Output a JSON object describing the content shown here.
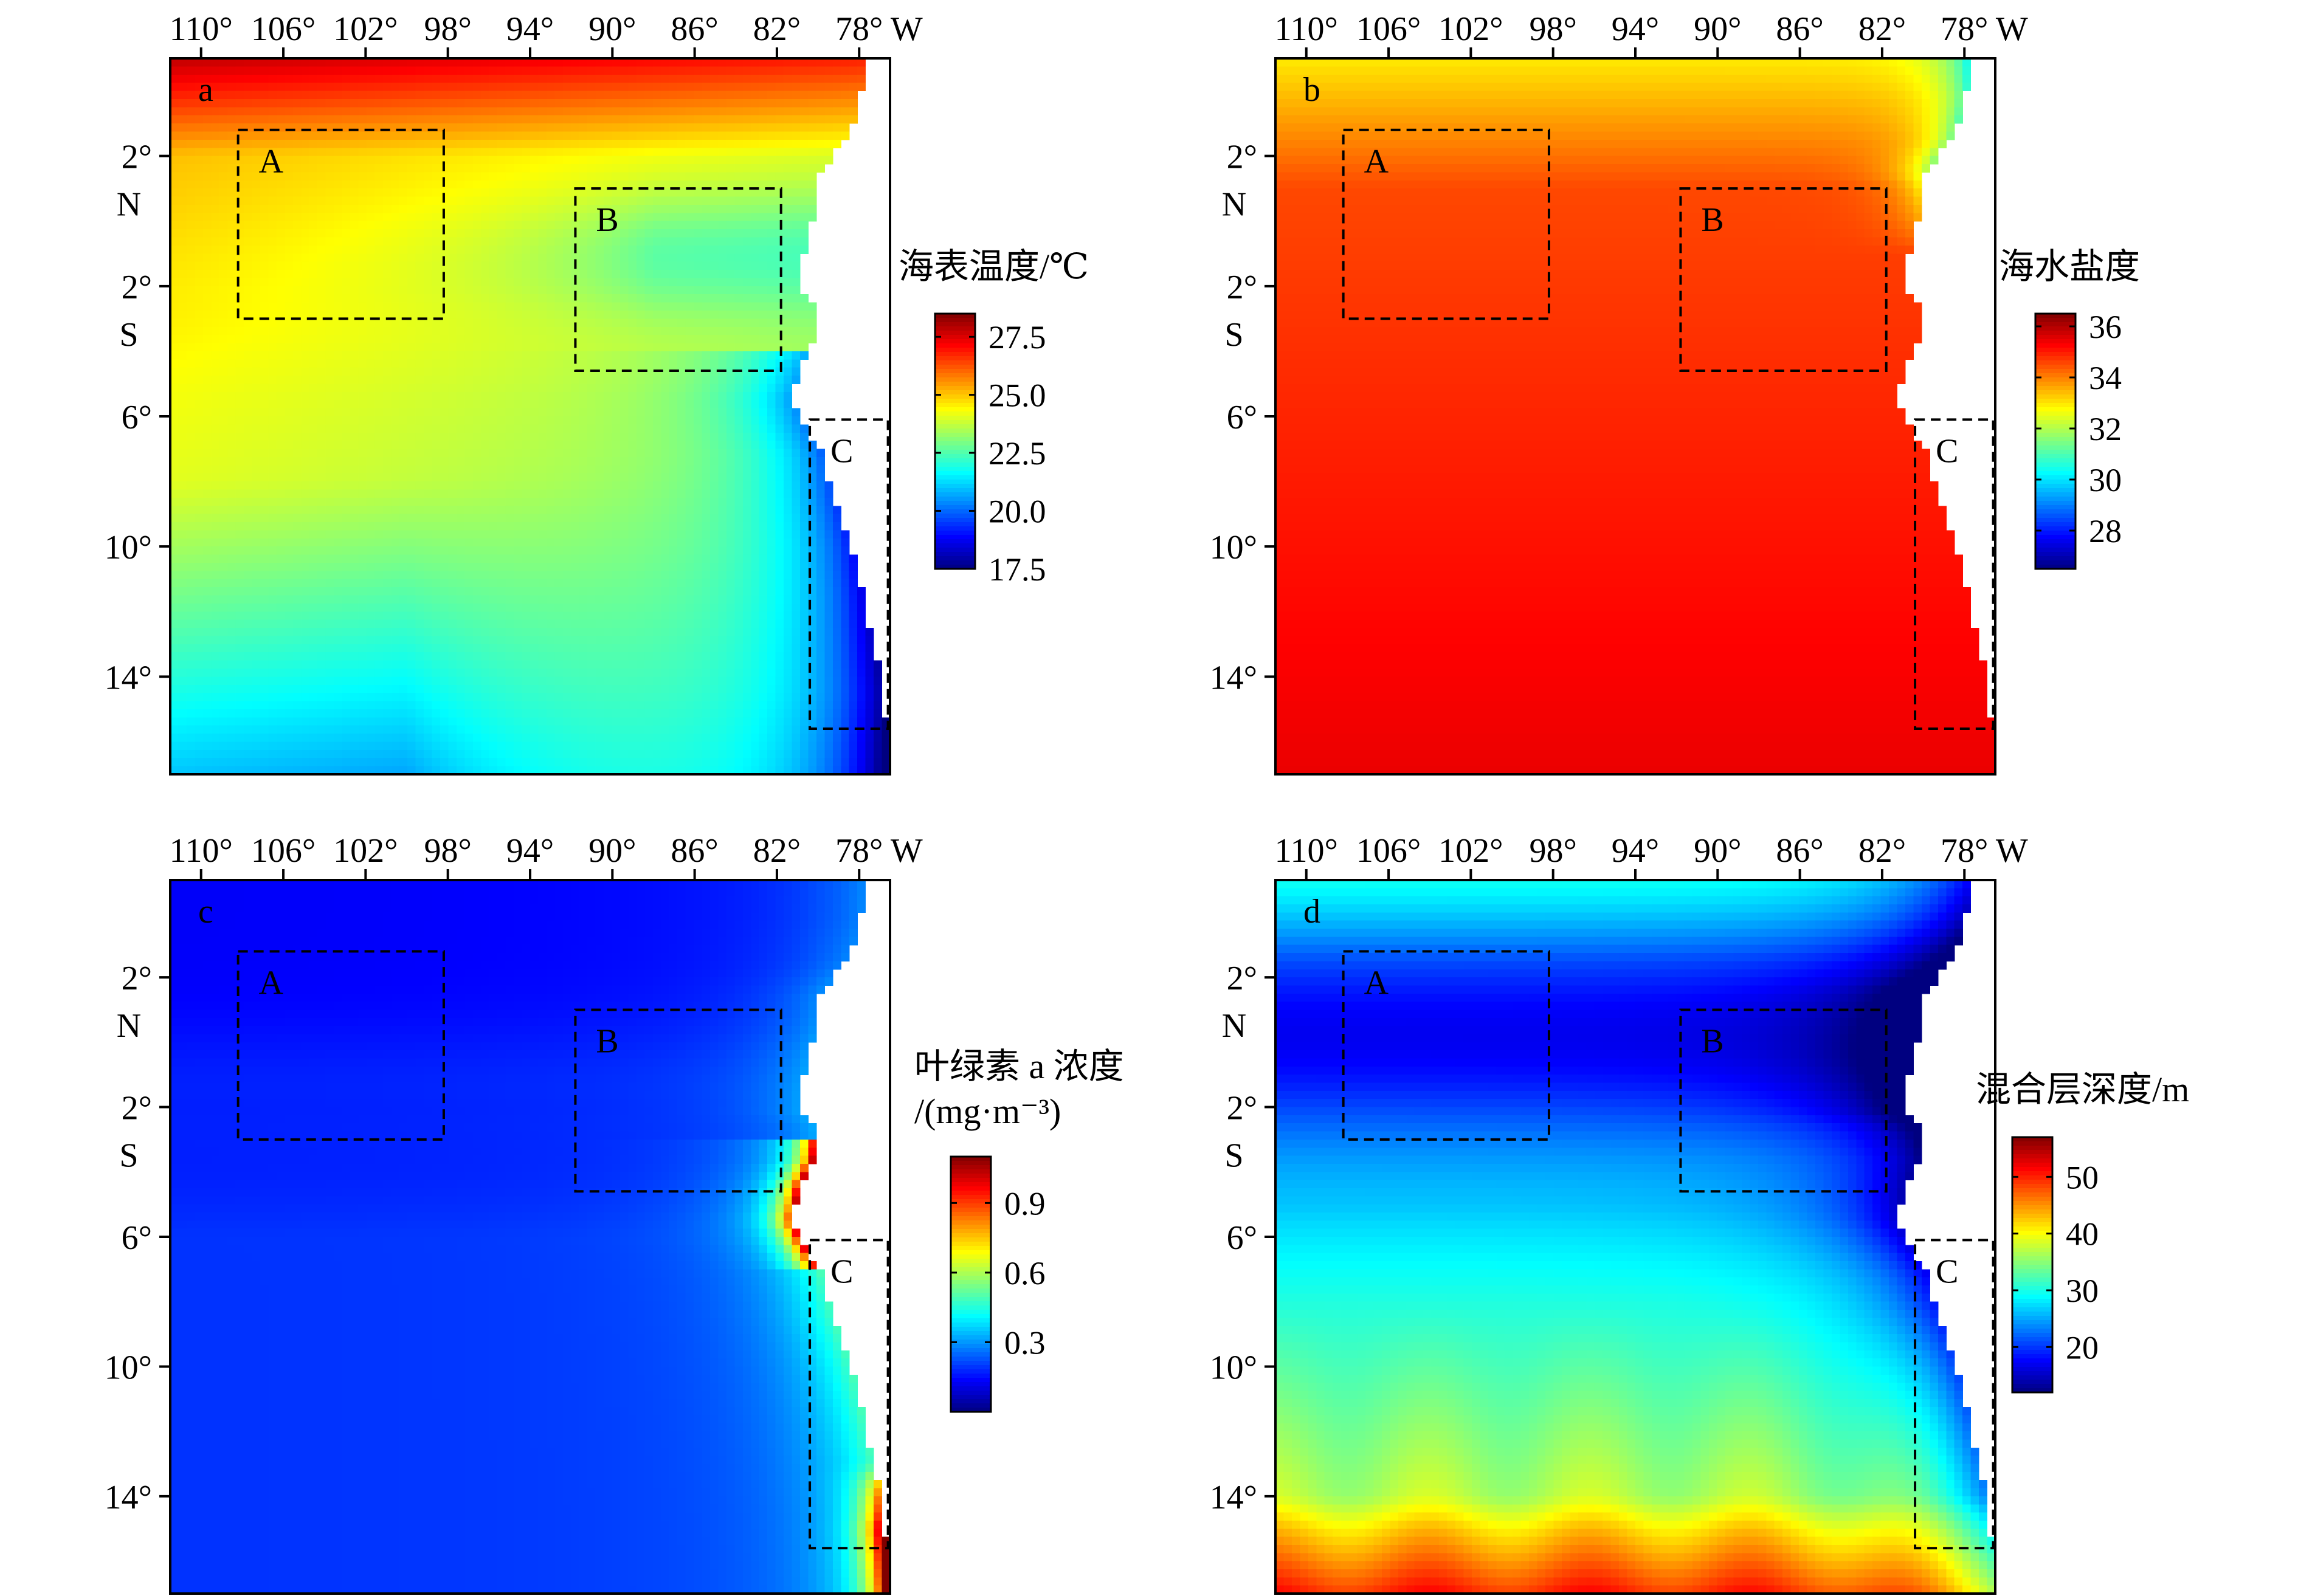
{
  "figure": {
    "x_ticks": [
      {
        "lon": 110,
        "label": "110°"
      },
      {
        "lon": 106,
        "label": "106°"
      },
      {
        "lon": 102,
        "label": "102°"
      },
      {
        "lon": 98,
        "label": "98°"
      },
      {
        "lon": 94,
        "label": "94°"
      },
      {
        "lon": 90,
        "label": "90°"
      },
      {
        "lon": 86,
        "label": "86°"
      },
      {
        "lon": 82,
        "label": "82°"
      },
      {
        "lon": 78,
        "label": "78°"
      }
    ],
    "x_unit": "W",
    "y_ticks": [
      {
        "lat": 2,
        "label": "2°",
        "hemi": "N"
      },
      {
        "lat": -2,
        "label": "2°",
        "hemi": "S"
      },
      {
        "lat": -6,
        "label": "6°",
        "hemi": ""
      },
      {
        "lat": -10,
        "label": "10°",
        "hemi": ""
      },
      {
        "lat": -14,
        "label": "14°",
        "hemi": ""
      }
    ],
    "lon_range": [
      111.5,
      76.5
    ],
    "lat_range": [
      5.0,
      -17.0
    ],
    "boxes": [
      {
        "id": "A",
        "lon": [
          108.2,
          98.2
        ],
        "lat": [
          2.8,
          -3.0
        ]
      },
      {
        "id": "B",
        "lon": [
          91.8,
          81.8
        ],
        "lat": [
          1.0,
          -4.6
        ]
      },
      {
        "id": "C",
        "lon": [
          80.4,
          76.6
        ],
        "lat": [
          -6.1,
          -15.6
        ]
      }
    ],
    "coast": [
      [
        5.0,
        77.8
      ],
      [
        3.8,
        77.9
      ],
      [
        2.5,
        78.6
      ],
      [
        1.5,
        80.0
      ],
      [
        0.5,
        80.1
      ],
      [
        -0.5,
        80.5
      ],
      [
        -1.5,
        80.8
      ],
      [
        -2.2,
        80.9
      ],
      [
        -2.5,
        80.3
      ],
      [
        -3.0,
        80.1
      ],
      [
        -3.6,
        80.2
      ],
      [
        -4.5,
        80.9
      ],
      [
        -5.5,
        81.2
      ],
      [
        -6.2,
        80.7
      ],
      [
        -7.2,
        79.8
      ],
      [
        -8.5,
        79.2
      ],
      [
        -10.0,
        78.4
      ],
      [
        -11.5,
        77.8
      ],
      [
        -13.0,
        77.3
      ],
      [
        -14.5,
        76.8
      ],
      [
        -17.0,
        76.5
      ]
    ]
  },
  "panels": [
    {
      "id": "a",
      "label": "a",
      "variable": "sst",
      "colorbar": {
        "title_lines": [
          "海表温度/℃"
        ],
        "range": [
          17.5,
          28.5
        ],
        "ticks": [
          {
            "v": 27.5,
            "label": "27.5"
          },
          {
            "v": 25.0,
            "label": "25.0"
          },
          {
            "v": 22.5,
            "label": "22.5"
          },
          {
            "v": 20.0,
            "label": "20.0"
          },
          {
            "v": 17.5,
            "label": "17.5"
          }
        ]
      }
    },
    {
      "id": "b",
      "label": "b",
      "variable": "sss",
      "colorbar": {
        "title_lines": [
          "海水盐度"
        ],
        "range": [
          26.5,
          36.5
        ],
        "ticks": [
          {
            "v": 36,
            "label": "36"
          },
          {
            "v": 34,
            "label": "34"
          },
          {
            "v": 32,
            "label": "32"
          },
          {
            "v": 30,
            "label": "30"
          },
          {
            "v": 28,
            "label": "28"
          }
        ]
      }
    },
    {
      "id": "c",
      "label": "c",
      "variable": "chl",
      "colorbar": {
        "title_lines": [
          "叶绿素 a 浓度",
          "/(mg·m⁻³)"
        ],
        "range": [
          0.0,
          1.1
        ],
        "ticks": [
          {
            "v": 0.9,
            "label": "0.9"
          },
          {
            "v": 0.6,
            "label": "0.6"
          },
          {
            "v": 0.3,
            "label": "0.3"
          }
        ]
      }
    },
    {
      "id": "d",
      "label": "d",
      "variable": "mld",
      "colorbar": {
        "title_lines": [
          "混合层深度/m"
        ],
        "range": [
          12,
          57
        ],
        "ticks": [
          {
            "v": 50,
            "label": "50"
          },
          {
            "v": 40,
            "label": "40"
          },
          {
            "v": 30,
            "label": "30"
          },
          {
            "v": 20,
            "label": "20"
          }
        ]
      }
    }
  ],
  "colormap": [
    "#000080",
    "#0000ff",
    "#0080ff",
    "#00ffff",
    "#80ff80",
    "#ffff00",
    "#ff8000",
    "#ff0000",
    "#800000"
  ]
}
